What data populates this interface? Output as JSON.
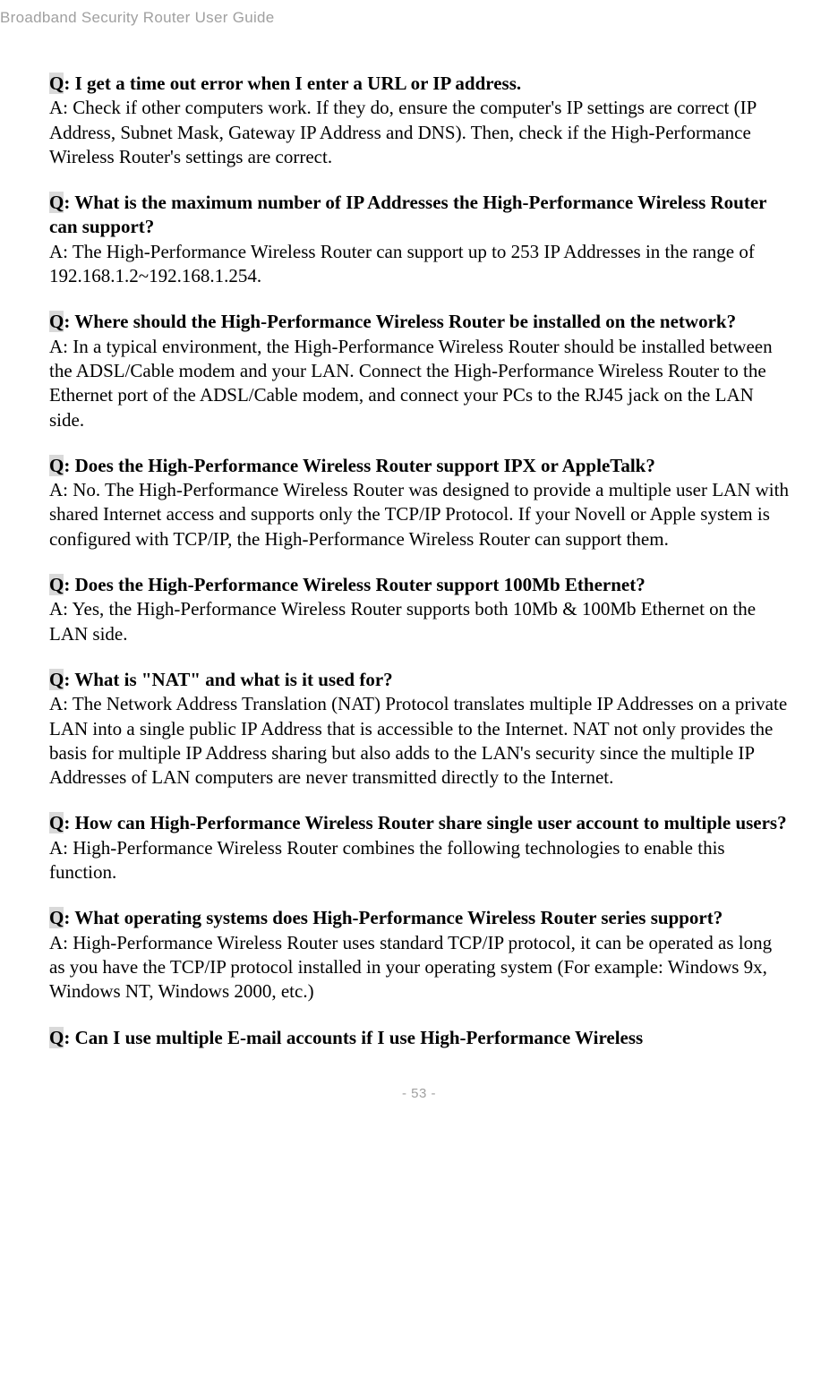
{
  "header": "Broadband Security Router User Guide",
  "footer": "- 53 -",
  "colors": {
    "text": "#000000",
    "muted": "#a0a0a0",
    "highlight_bg": "#d9d9d9",
    "page_bg": "#ffffff"
  },
  "typography": {
    "body_family": "Times New Roman",
    "header_family": "Arial",
    "body_fontsize": 21,
    "header_fontsize": 17,
    "footer_fontsize": 15
  },
  "faq": [
    {
      "q": ": I get a time out error when I enter a URL or IP address.",
      "a": "A: Check if other computers work. If they do, ensure the computer's IP settings are correct (IP Address, Subnet Mask, Gateway IP Address and DNS). Then, check if the High-Performance Wireless Router's settings are correct."
    },
    {
      "q": ": What is the maximum number of IP Addresses the High-Performance Wireless Router can support?",
      "a": "A: The High-Performance Wireless Router can support up to 253 IP Addresses in the range of 192.168.1.2~192.168.1.254."
    },
    {
      "q": ": Where should the High-Performance Wireless Router be installed on the network?",
      "a": "A: In a typical environment, the High-Performance Wireless Router should be installed between the ADSL/Cable modem and your LAN. Connect the High-Performance Wireless Router to the Ethernet port of the ADSL/Cable modem, and connect your PCs to the RJ45 jack on the LAN side."
    },
    {
      "q": ": Does the High-Performance Wireless Router support IPX or AppleTalk?",
      "a": "A: No. The High-Performance Wireless Router was designed to provide a multiple user LAN with shared Internet access and supports only the TCP/IP Protocol. If your Novell or Apple system is configured with TCP/IP, the High-Performance Wireless Router can support them."
    },
    {
      "q": ": Does the High-Performance Wireless Router support 100Mb Ethernet?",
      "a": "A: Yes, the High-Performance Wireless Router supports both 10Mb & 100Mb Ethernet on the LAN side."
    },
    {
      "q": ": What is \"NAT\" and what is it used for?",
      "a": "A: The Network Address Translation (NAT) Protocol translates multiple IP Addresses on a private LAN into a single public IP Address that is accessible to the Internet. NAT not only provides the basis for multiple IP Address sharing but also adds to the LAN's security since the multiple IP Addresses of LAN computers are never transmitted directly to the Internet."
    },
    {
      "q": ": How can High-Performance Wireless Router share single user account to multiple users?",
      "a": "A: High-Performance Wireless Router combines the following technologies to enable this function."
    },
    {
      "q": ": What operating systems does High-Performance Wireless Router series support?",
      "a": "A: High-Performance Wireless Router uses standard TCP/IP protocol, it can be operated as long as you have the TCP/IP protocol installed in your operating system (For example: Windows 9x, Windows NT, Windows 2000, etc.)"
    },
    {
      "q": ": Can I use multiple E-mail accounts if I use High-Performance Wireless",
      "a": ""
    }
  ]
}
